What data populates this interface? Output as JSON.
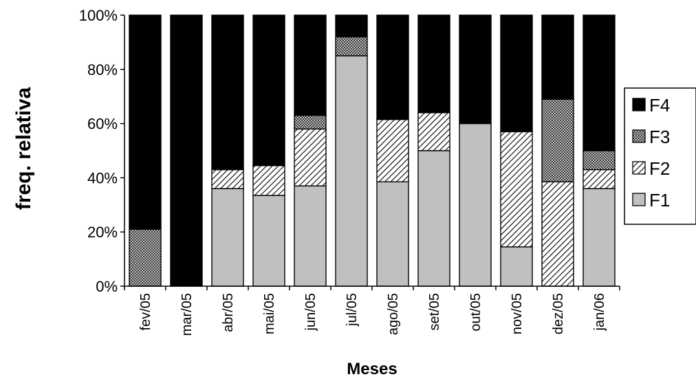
{
  "chart_data": {
    "type": "bar",
    "stacked": true,
    "normalized": true,
    "title": "",
    "xlabel": "Meses",
    "ylabel": "freq. relativa",
    "ylim": [
      0,
      100
    ],
    "yticks": [
      "0%",
      "20%",
      "40%",
      "60%",
      "80%",
      "100%"
    ],
    "categories": [
      "fev/05",
      "mar/05",
      "abr/05",
      "mai/05",
      "jun/05",
      "jul/05",
      "ago/05",
      "set/05",
      "out/05",
      "nov/05",
      "dez/05",
      "jan/06"
    ],
    "series": [
      {
        "name": "F1",
        "values": [
          0,
          0,
          36,
          33.5,
          37,
          85,
          38.5,
          50,
          60,
          14.5,
          0,
          36
        ],
        "color": "#c0c0c0",
        "pattern": "solid"
      },
      {
        "name": "F2",
        "values": [
          0,
          0,
          7,
          11,
          21,
          0,
          23,
          14,
          0,
          42.5,
          38.5,
          7
        ],
        "color": "#ffffff",
        "pattern": "diagonal-hatch"
      },
      {
        "name": "F3",
        "values": [
          21,
          0,
          0,
          0,
          5,
          7,
          0,
          0,
          0,
          0,
          30.5,
          7
        ],
        "color": "#808080",
        "pattern": "dense-dots"
      },
      {
        "name": "F4",
        "values": [
          79,
          100,
          57,
          55.5,
          37,
          8,
          38.5,
          36,
          40,
          43,
          31,
          50
        ],
        "color": "#000000",
        "pattern": "solid"
      }
    ],
    "legend": {
      "position": "right",
      "order": [
        "F4",
        "F3",
        "F2",
        "F1"
      ]
    },
    "grid": false
  }
}
